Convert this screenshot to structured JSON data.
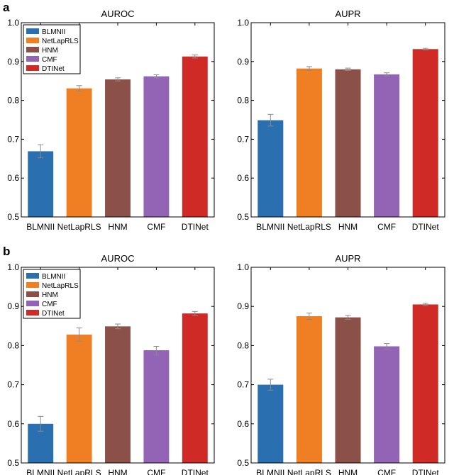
{
  "panels": [
    "a",
    "b"
  ],
  "colors": {
    "BLMNII": "#2a6fb0",
    "NetLapRLS": "#ef7f22",
    "HNM": "#8b5148",
    "CMF": "#9363b5",
    "DTINet": "#d02a26"
  },
  "chart_data": [
    {
      "panel": "a",
      "type": "bar",
      "title": "AUROC",
      "categories": [
        "BLMNII",
        "NetLapRLS",
        "HNM",
        "CMF",
        "DTINet"
      ],
      "values": [
        0.669,
        0.831,
        0.854,
        0.862,
        0.913
      ],
      "errors": [
        0.017,
        0.007,
        0.004,
        0.004,
        0.004
      ],
      "ylim": [
        0.5,
        1.0
      ],
      "yticks": [
        "0.5",
        "0.6",
        "0.7",
        "0.8",
        "0.9",
        "1.0"
      ],
      "legend": true,
      "legend_position": "top-left"
    },
    {
      "panel": "a",
      "type": "bar",
      "title": "AUPR",
      "categories": [
        "BLMNII",
        "NetLapRLS",
        "HNM",
        "CMF",
        "DTINet"
      ],
      "values": [
        0.749,
        0.882,
        0.88,
        0.867,
        0.932
      ],
      "errors": [
        0.015,
        0.005,
        0.003,
        0.004,
        0.002
      ],
      "ylim": [
        0.5,
        1.0
      ],
      "yticks": [
        "0.5",
        "0.6",
        "0.7",
        "0.8",
        "0.9",
        "1.0"
      ],
      "legend": false
    },
    {
      "panel": "b",
      "type": "bar",
      "title": "AUROC",
      "categories": [
        "BLMNII",
        "NetLapRLS",
        "HNM",
        "CMF",
        "DTINet"
      ],
      "values": [
        0.6,
        0.828,
        0.849,
        0.788,
        0.882
      ],
      "errors": [
        0.019,
        0.017,
        0.006,
        0.01,
        0.005
      ],
      "ylim": [
        0.5,
        1.0
      ],
      "yticks": [
        "0.5",
        "0.6",
        "0.7",
        "0.8",
        "0.9",
        "1.0"
      ],
      "legend": true,
      "legend_position": "top-left"
    },
    {
      "panel": "b",
      "type": "bar",
      "title": "AUPR",
      "categories": [
        "BLMNII",
        "NetLapRLS",
        "HNM",
        "CMF",
        "DTINet"
      ],
      "values": [
        0.7,
        0.875,
        0.872,
        0.798,
        0.905
      ],
      "errors": [
        0.014,
        0.008,
        0.005,
        0.007,
        0.003
      ],
      "ylim": [
        0.5,
        1.0
      ],
      "yticks": [
        "0.5",
        "0.6",
        "0.7",
        "0.8",
        "0.9",
        "1.0"
      ],
      "legend": false
    }
  ]
}
